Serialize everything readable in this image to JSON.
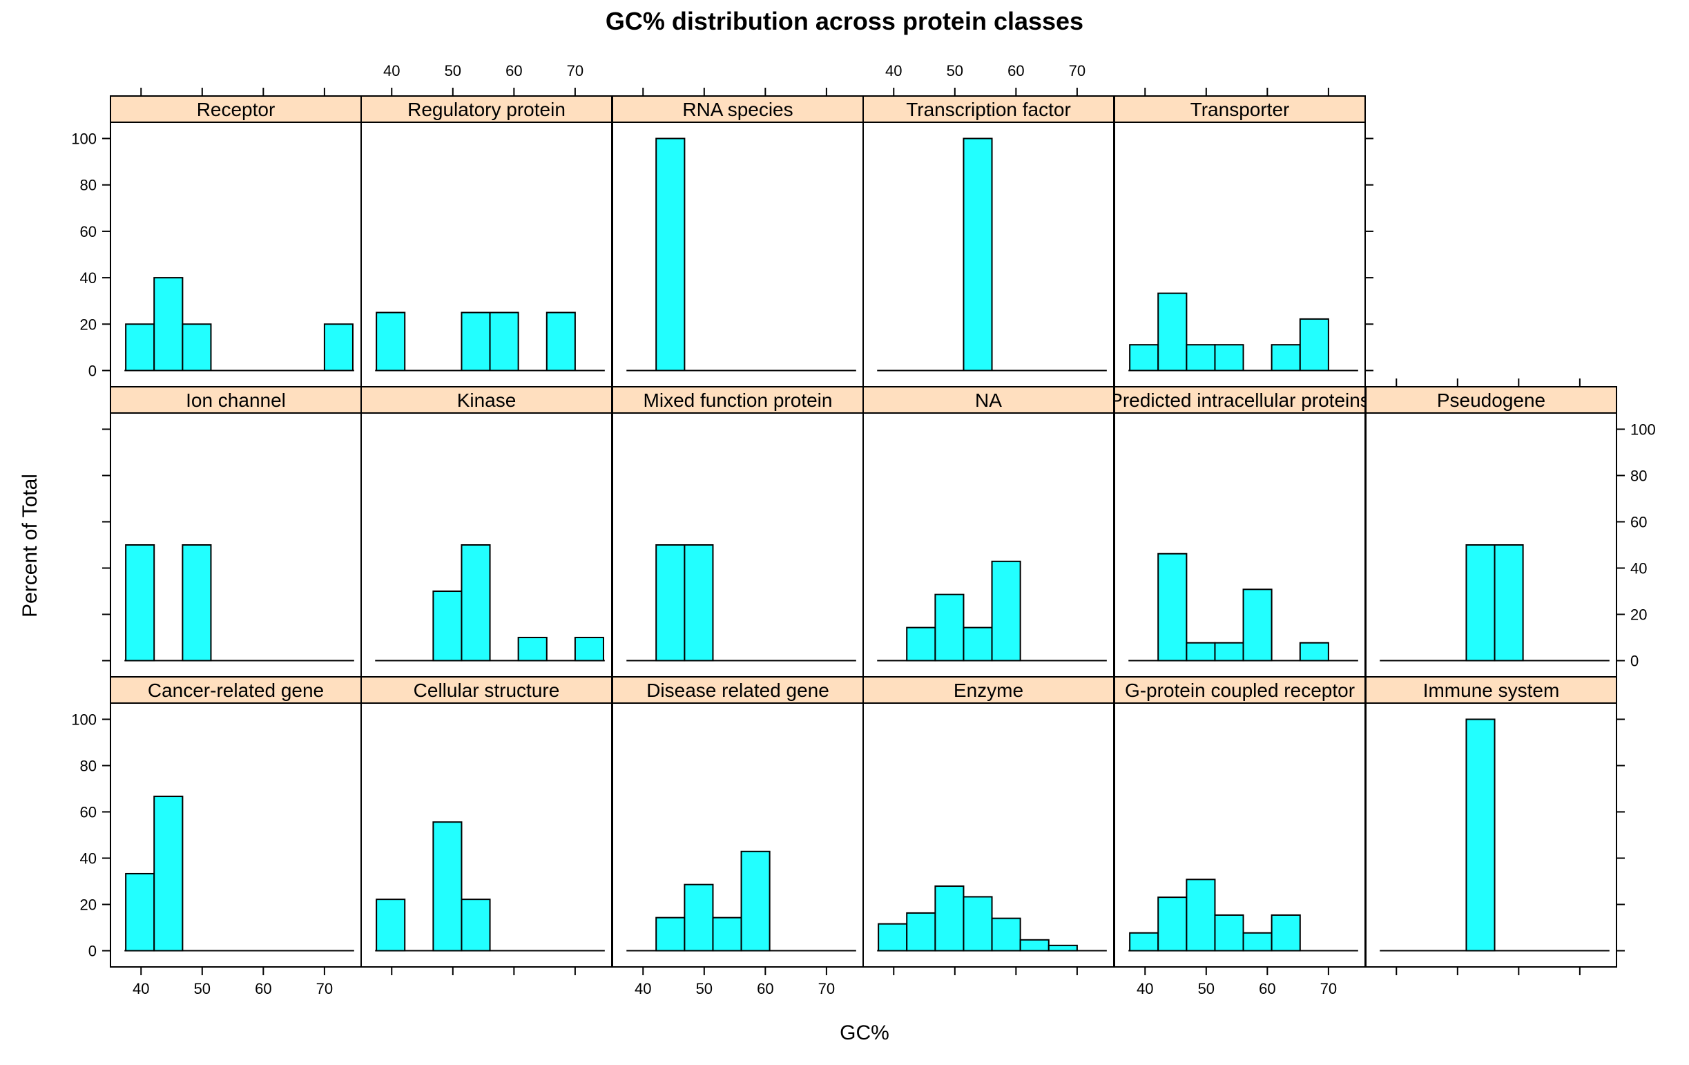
{
  "chart_data": {
    "type": "bar",
    "title": "GC% distribution across protein classes",
    "xlabel": "GC%",
    "ylabel": "Percent of Total",
    "xlim": [
      35,
      76
    ],
    "ylim": [
      -7,
      107
    ],
    "x_ticks": [
      40,
      50,
      60,
      70
    ],
    "y_ticks": [
      0,
      20,
      40,
      60,
      80,
      100
    ],
    "bin_edges": [
      37.5,
      42.14,
      46.79,
      51.43,
      56.07,
      60.71,
      65.36,
      70.0,
      74.64
    ],
    "bar_color": "#22ffff",
    "strip_color": "#ffdfbf",
    "panels": [
      {
        "name": "Receptor",
        "values": [
          20,
          40,
          20,
          0,
          0,
          0,
          0,
          20
        ]
      },
      {
        "name": "Regulatory protein",
        "values": [
          25,
          0,
          0,
          25,
          25,
          0,
          25,
          0
        ]
      },
      {
        "name": "RNA species",
        "values": [
          0,
          100,
          0,
          0,
          0,
          0,
          0,
          0
        ]
      },
      {
        "name": "Transcription factor",
        "values": [
          0,
          0,
          0,
          100,
          0,
          0,
          0,
          0
        ]
      },
      {
        "name": "Transporter",
        "values": [
          11.1,
          33.3,
          11.1,
          11.1,
          0,
          11.1,
          22.2,
          0
        ]
      },
      {
        "name": "Ion channel",
        "values": [
          50,
          0,
          50,
          0,
          0,
          0,
          0,
          0
        ]
      },
      {
        "name": "Kinase",
        "values": [
          0,
          0,
          30,
          50,
          0,
          10,
          0,
          10
        ]
      },
      {
        "name": "Mixed function protein",
        "values": [
          0,
          50,
          50,
          0,
          0,
          0,
          0,
          0
        ]
      },
      {
        "name": "NA",
        "values": [
          0,
          14.3,
          28.6,
          14.3,
          42.9,
          0,
          0,
          0
        ]
      },
      {
        "name": "Predicted intracellular proteins",
        "values": [
          0,
          46.2,
          7.7,
          7.7,
          30.8,
          0,
          7.7,
          0
        ]
      },
      {
        "name": "Pseudogene",
        "values": [
          0,
          0,
          0,
          50,
          50,
          0,
          0,
          0
        ]
      },
      {
        "name": "Cancer-related gene",
        "values": [
          33.3,
          66.7,
          0,
          0,
          0,
          0,
          0,
          0
        ]
      },
      {
        "name": "Cellular structure",
        "values": [
          22.2,
          0,
          55.6,
          22.2,
          0,
          0,
          0,
          0
        ]
      },
      {
        "name": "Disease related gene",
        "values": [
          0,
          14.3,
          28.6,
          14.3,
          42.9,
          0,
          0,
          0
        ]
      },
      {
        "name": "Enzyme",
        "values": [
          11.6,
          16.3,
          27.9,
          23.3,
          14.0,
          4.7,
          2.3,
          0
        ]
      },
      {
        "name": "G-protein coupled receptor",
        "values": [
          7.7,
          23.1,
          30.8,
          15.4,
          7.7,
          15.4,
          0,
          0
        ]
      },
      {
        "name": "Immune system",
        "values": [
          0,
          0,
          0,
          100,
          0,
          0,
          0,
          0
        ]
      }
    ]
  }
}
